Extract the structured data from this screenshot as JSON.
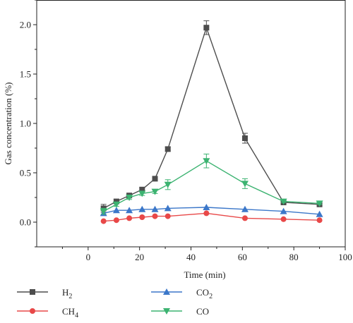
{
  "chart_data": {
    "type": "line",
    "xlabel": "Time (min)",
    "ylabel": "Gas concentration (%)",
    "xlim": [
      -20,
      100
    ],
    "ylim": [
      -0.25,
      2.25
    ],
    "xticks": [
      0,
      20,
      40,
      60,
      80,
      100
    ],
    "yticks": [
      0.0,
      0.5,
      1.0,
      1.5,
      2.0
    ],
    "xtick_labels": [
      "0",
      "20",
      "40",
      "60",
      "80",
      "100"
    ],
    "ytick_labels": [
      "0.0",
      "0.5",
      "1.0",
      "1.5",
      "2.0"
    ],
    "grid": false,
    "legend_position": "bottom",
    "series": [
      {
        "name": "H",
        "subscript": "2",
        "color": "#4d4d4d",
        "marker": "square",
        "x": [
          6,
          11,
          16,
          21,
          26,
          31,
          46,
          61,
          76,
          90
        ],
        "y": [
          0.14,
          0.21,
          0.27,
          0.33,
          0.44,
          0.74,
          1.97,
          0.85,
          0.2,
          0.18
        ],
        "err": [
          0.04,
          0.02,
          0.02,
          0.02,
          0.02,
          0.02,
          0.07,
          0.05,
          0.01,
          0.01
        ]
      },
      {
        "name": "CH",
        "subscript": "4",
        "color": "#e84848",
        "marker": "circle",
        "x": [
          6,
          11,
          16,
          21,
          26,
          31,
          46,
          61,
          76,
          90
        ],
        "y": [
          0.01,
          0.02,
          0.04,
          0.05,
          0.06,
          0.06,
          0.09,
          0.04,
          0.03,
          0.02
        ],
        "err": [
          0,
          0,
          0,
          0,
          0,
          0,
          0,
          0,
          0,
          0
        ]
      },
      {
        "name": "CO",
        "subscript": "2",
        "color": "#3b77c9",
        "marker": "triangle-up",
        "x": [
          6,
          11,
          16,
          21,
          26,
          31,
          46,
          61,
          76,
          90
        ],
        "y": [
          0.09,
          0.12,
          0.12,
          0.13,
          0.13,
          0.14,
          0.15,
          0.13,
          0.11,
          0.08
        ],
        "err": [
          0,
          0,
          0,
          0,
          0,
          0,
          0,
          0,
          0,
          0
        ]
      },
      {
        "name": "CO",
        "subscript": "",
        "color": "#3cb371",
        "marker": "triangle-down",
        "x": [
          6,
          11,
          16,
          21,
          26,
          31,
          46,
          61,
          76,
          90
        ],
        "y": [
          0.11,
          0.18,
          0.25,
          0.29,
          0.31,
          0.38,
          0.62,
          0.39,
          0.21,
          0.19
        ],
        "err": [
          0.03,
          0.02,
          0.02,
          0.02,
          0.02,
          0.05,
          0.07,
          0.05,
          0.01,
          0.01
        ]
      }
    ]
  }
}
